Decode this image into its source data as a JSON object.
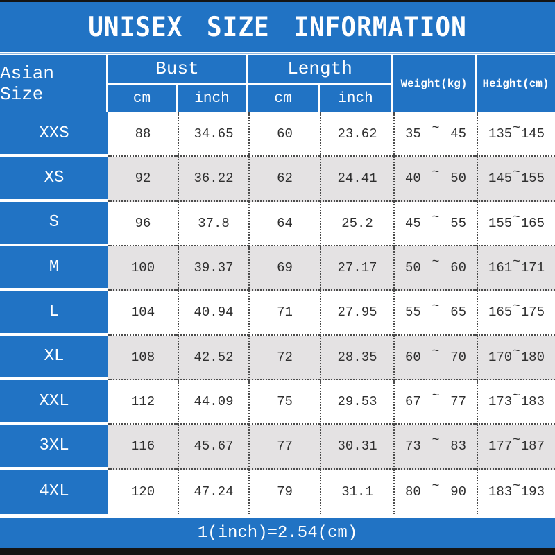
{
  "title": "UNISEX SIZE INFORMATION",
  "table": {
    "columns": {
      "size": "Asian Size",
      "bust": "Bust",
      "length": "Length",
      "weight": "Weight(kg)",
      "height": "Height(cm)",
      "unit_cm": "cm",
      "unit_inch": "inch"
    },
    "range_separator": "~",
    "rows": [
      {
        "size": "XXS",
        "bust_cm": "88",
        "bust_inch": "34.65",
        "length_cm": "60",
        "length_inch": "23.62",
        "weight_min": "35",
        "weight_max": "45",
        "height_min": "135",
        "height_max": "145"
      },
      {
        "size": "XS",
        "bust_cm": "92",
        "bust_inch": "36.22",
        "length_cm": "62",
        "length_inch": "24.41",
        "weight_min": "40",
        "weight_max": "50",
        "height_min": "145",
        "height_max": "155"
      },
      {
        "size": "S",
        "bust_cm": "96",
        "bust_inch": "37.8",
        "length_cm": "64",
        "length_inch": "25.2",
        "weight_min": "45",
        "weight_max": "55",
        "height_min": "155",
        "height_max": "165"
      },
      {
        "size": "M",
        "bust_cm": "100",
        "bust_inch": "39.37",
        "length_cm": "69",
        "length_inch": "27.17",
        "weight_min": "50",
        "weight_max": "60",
        "height_min": "161",
        "height_max": "171"
      },
      {
        "size": "L",
        "bust_cm": "104",
        "bust_inch": "40.94",
        "length_cm": "71",
        "length_inch": "27.95",
        "weight_min": "55",
        "weight_max": "65",
        "height_min": "165",
        "height_max": "175"
      },
      {
        "size": "XL",
        "bust_cm": "108",
        "bust_inch": "42.52",
        "length_cm": "72",
        "length_inch": "28.35",
        "weight_min": "60",
        "weight_max": "70",
        "height_min": "170",
        "height_max": "180"
      },
      {
        "size": "XXL",
        "bust_cm": "112",
        "bust_inch": "44.09",
        "length_cm": "75",
        "length_inch": "29.53",
        "weight_min": "67",
        "weight_max": "77",
        "height_min": "173",
        "height_max": "183"
      },
      {
        "size": "3XL",
        "bust_cm": "116",
        "bust_inch": "45.67",
        "length_cm": "77",
        "length_inch": "30.31",
        "weight_min": "73",
        "weight_max": "83",
        "height_min": "177",
        "height_max": "187"
      },
      {
        "size": "4XL",
        "bust_cm": "120",
        "bust_inch": "47.24",
        "length_cm": "79",
        "length_inch": "31.1",
        "weight_min": "80",
        "weight_max": "90",
        "height_min": "183",
        "height_max": "193"
      }
    ]
  },
  "footer": {
    "note": "1(inch)=2.54(cm)"
  },
  "colors": {
    "accent_blue": "#2173c4",
    "stripe_gray": "#e4e2e3",
    "bar_black": "#141414",
    "line_dark": "#4b4b4b"
  }
}
